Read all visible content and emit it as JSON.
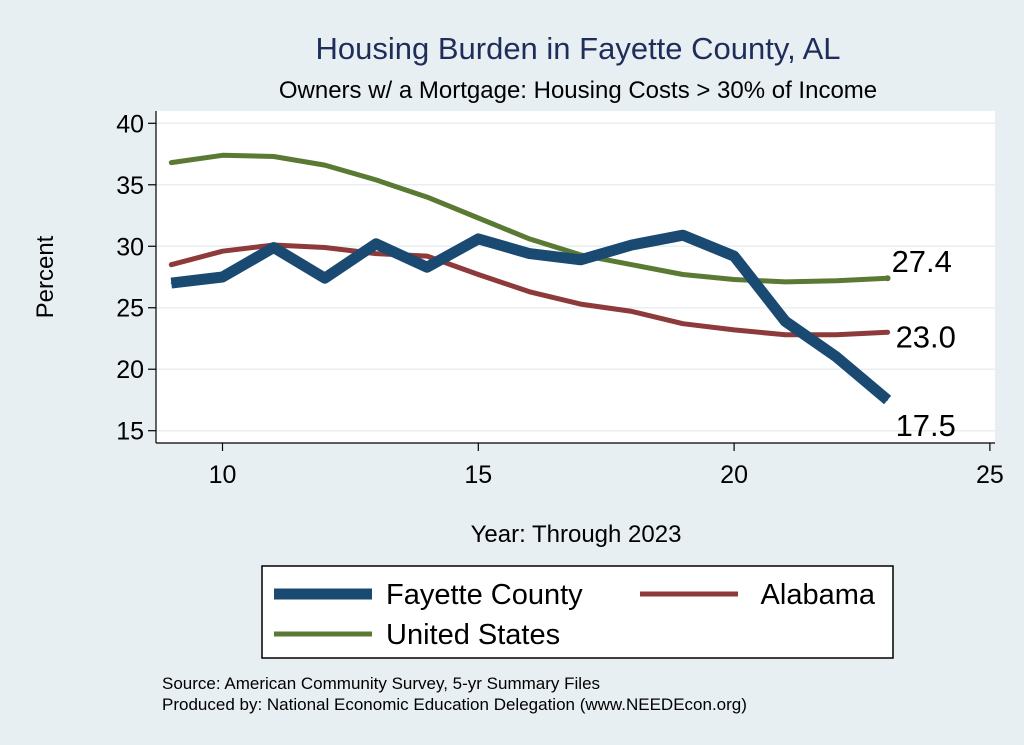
{
  "chart_data": {
    "type": "line",
    "title": "Housing Burden in Fayette County, AL",
    "subtitle": "Owners w/ a Mortgage: Housing Costs > 30% of Income",
    "xlabel": "Year: Through 2023",
    "ylabel": "Percent",
    "xlim": [
      8.7,
      25.1
    ],
    "ylim": [
      14,
      41
    ],
    "xticks": [
      10,
      15,
      20,
      25
    ],
    "yticks": [
      15,
      20,
      25,
      30,
      35,
      40
    ],
    "grid": true,
    "legend_position": "bottom",
    "x": [
      9,
      10,
      11,
      12,
      13,
      14,
      15,
      16,
      17,
      18,
      19,
      20,
      21,
      22,
      23
    ],
    "series": [
      {
        "name": "Fayette County",
        "color": "#1a4a72",
        "values": [
          27.0,
          27.5,
          29.9,
          27.4,
          30.2,
          28.3,
          30.6,
          29.4,
          28.9,
          30.1,
          30.9,
          29.2,
          23.9,
          21.0,
          17.5
        ],
        "end_label": "17.5"
      },
      {
        "name": "Alabama",
        "color": "#8e3a3a",
        "values": [
          28.5,
          29.6,
          30.1,
          29.9,
          29.4,
          29.2,
          27.7,
          26.3,
          25.3,
          24.7,
          23.7,
          23.2,
          22.8,
          22.8,
          23.0
        ],
        "end_label": "23.0"
      },
      {
        "name": "United States",
        "color": "#5a7a34",
        "values": [
          36.8,
          37.4,
          37.3,
          36.6,
          35.4,
          34.0,
          32.3,
          30.6,
          29.3,
          28.5,
          27.7,
          27.3,
          27.1,
          27.2,
          27.4
        ],
        "end_label": "27.4"
      }
    ]
  },
  "notes": {
    "source": "Source: American Community Survey, 5-yr Summary Files",
    "produced": "Produced by: National Economic Education Delegation (www.NEEDEcon.org)"
  }
}
